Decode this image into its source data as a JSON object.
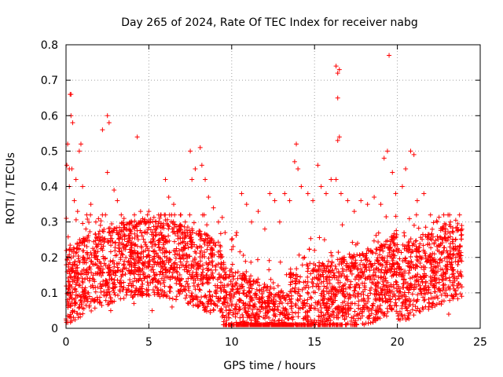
{
  "chart_data": {
    "type": "scatter",
    "title": "Day 265 of 2024, Rate Of TEC Index for receiver nabg",
    "xlabel": "GPS time / hours",
    "ylabel": "ROTI / TECUs",
    "xlim": [
      0,
      25
    ],
    "ylim": [
      0,
      0.8
    ],
    "xticks": [
      0,
      5,
      10,
      15,
      20,
      25
    ],
    "yticks": [
      0,
      0.1,
      0.2,
      0.3,
      0.4,
      0.5,
      0.6,
      0.7,
      0.8
    ],
    "xtick_labels": [
      "0",
      "5",
      "10",
      "15",
      "20",
      "25"
    ],
    "ytick_labels": [
      "0",
      "0.1",
      "0.2",
      "0.3",
      "0.4",
      "0.5",
      "0.6",
      "0.7",
      "0.8"
    ],
    "grid": true,
    "marker": "plus",
    "color": "#ff0000",
    "series": [
      {
        "name": "ROTI",
        "points": [
          [
            0.05,
            0.46
          ],
          [
            0.1,
            0.52
          ],
          [
            0.2,
            0.45
          ],
          [
            0.25,
            0.66
          ],
          [
            0.3,
            0.66
          ],
          [
            0.3,
            0.6
          ],
          [
            0.4,
            0.58
          ],
          [
            0.35,
            0.45
          ],
          [
            0.2,
            0.4
          ],
          [
            0.6,
            0.42
          ],
          [
            0.8,
            0.5
          ],
          [
            0.9,
            0.52
          ],
          [
            0.5,
            0.36
          ],
          [
            0.7,
            0.33
          ],
          [
            1.0,
            0.4
          ],
          [
            1.5,
            0.35
          ],
          [
            1.8,
            0.3
          ],
          [
            2.2,
            0.56
          ],
          [
            2.5,
            0.6
          ],
          [
            2.6,
            0.58
          ],
          [
            2.5,
            0.44
          ],
          [
            2.9,
            0.39
          ],
          [
            3.1,
            0.36
          ],
          [
            3.5,
            0.31
          ],
          [
            3.8,
            0.28
          ],
          [
            4.3,
            0.54
          ],
          [
            4.5,
            0.33
          ],
          [
            4.7,
            0.3
          ],
          [
            5.0,
            0.33
          ],
          [
            5.4,
            0.3
          ],
          [
            6.0,
            0.42
          ],
          [
            6.2,
            0.37
          ],
          [
            6.5,
            0.35
          ],
          [
            6.9,
            0.32
          ],
          [
            7.2,
            0.3
          ],
          [
            7.5,
            0.5
          ],
          [
            7.6,
            0.42
          ],
          [
            7.8,
            0.45
          ],
          [
            8.1,
            0.51
          ],
          [
            8.2,
            0.46
          ],
          [
            8.4,
            0.42
          ],
          [
            8.6,
            0.37
          ],
          [
            8.9,
            0.34
          ],
          [
            9.2,
            0.3
          ],
          [
            9.6,
            0.27
          ],
          [
            10.0,
            0.25
          ],
          [
            10.3,
            0.27
          ],
          [
            10.6,
            0.38
          ],
          [
            10.9,
            0.35
          ],
          [
            11.2,
            0.3
          ],
          [
            11.6,
            0.33
          ],
          [
            12.0,
            0.28
          ],
          [
            12.3,
            0.38
          ],
          [
            12.6,
            0.36
          ],
          [
            12.9,
            0.3
          ],
          [
            13.2,
            0.38
          ],
          [
            13.5,
            0.36
          ],
          [
            13.8,
            0.47
          ],
          [
            13.9,
            0.52
          ],
          [
            14.0,
            0.45
          ],
          [
            14.2,
            0.4
          ],
          [
            14.6,
            0.38
          ],
          [
            14.9,
            0.36
          ],
          [
            15.2,
            0.46
          ],
          [
            15.4,
            0.4
          ],
          [
            15.7,
            0.38
          ],
          [
            16.0,
            0.42
          ],
          [
            16.3,
            0.74
          ],
          [
            16.4,
            0.72
          ],
          [
            16.5,
            0.73
          ],
          [
            16.4,
            0.65
          ],
          [
            16.4,
            0.53
          ],
          [
            16.5,
            0.54
          ],
          [
            16.3,
            0.42
          ],
          [
            16.6,
            0.38
          ],
          [
            17.0,
            0.36
          ],
          [
            17.4,
            0.33
          ],
          [
            17.8,
            0.36
          ],
          [
            18.2,
            0.35
          ],
          [
            18.6,
            0.37
          ],
          [
            19.0,
            0.35
          ],
          [
            19.2,
            0.48
          ],
          [
            19.4,
            0.5
          ],
          [
            19.5,
            0.77
          ],
          [
            19.7,
            0.44
          ],
          [
            19.9,
            0.38
          ],
          [
            20.3,
            0.4
          ],
          [
            20.5,
            0.45
          ],
          [
            20.8,
            0.5
          ],
          [
            21.0,
            0.49
          ],
          [
            21.2,
            0.36
          ],
          [
            21.6,
            0.38
          ],
          [
            22.0,
            0.32
          ],
          [
            22.4,
            0.3
          ],
          [
            22.8,
            0.32
          ],
          [
            23.2,
            0.3
          ],
          [
            23.5,
            0.25
          ],
          [
            23.8,
            0.23
          ],
          [
            1.2,
            0.28
          ],
          [
            1.7,
            0.22
          ],
          [
            2.1,
            0.25
          ],
          [
            3.3,
            0.2
          ],
          [
            3.9,
            0.18
          ],
          [
            4.8,
            0.22
          ],
          [
            5.6,
            0.2
          ],
          [
            6.7,
            0.21
          ],
          [
            7.9,
            0.23
          ],
          [
            9.4,
            0.18
          ],
          [
            10.2,
            0.12
          ],
          [
            10.5,
            0.08
          ],
          [
            10.8,
            0.14
          ],
          [
            11.1,
            0.1
          ],
          [
            11.4,
            0.06
          ],
          [
            11.8,
            0.11
          ],
          [
            12.2,
            0.09
          ],
          [
            12.5,
            0.07
          ],
          [
            12.8,
            0.12
          ],
          [
            13.1,
            0.1
          ],
          [
            13.6,
            0.15
          ],
          [
            14.4,
            0.2
          ],
          [
            15.0,
            0.22
          ],
          [
            15.6,
            0.25
          ],
          [
            16.8,
            0.2
          ],
          [
            17.6,
            0.24
          ],
          [
            18.4,
            0.22
          ],
          [
            19.1,
            0.2
          ],
          [
            20.1,
            0.22
          ],
          [
            21.4,
            0.2
          ],
          [
            22.2,
            0.16
          ],
          [
            22.9,
            0.14
          ],
          [
            23.6,
            0.12
          ],
          [
            0.5,
            0.08
          ],
          [
            1.4,
            0.06
          ],
          [
            2.7,
            0.05
          ],
          [
            4.1,
            0.07
          ],
          [
            5.2,
            0.05
          ],
          [
            6.4,
            0.06
          ],
          [
            7.4,
            0.07
          ],
          [
            8.7,
            0.05
          ],
          [
            9.8,
            0.04
          ],
          [
            10.7,
            0.02
          ],
          [
            11.5,
            0.01
          ],
          [
            12.6,
            0.02
          ],
          [
            13.4,
            0.03
          ],
          [
            14.7,
            0.05
          ],
          [
            15.9,
            0.06
          ],
          [
            17.2,
            0.07
          ],
          [
            18.8,
            0.06
          ],
          [
            20.6,
            0.05
          ],
          [
            21.9,
            0.06
          ],
          [
            23.1,
            0.04
          ]
        ]
      }
    ]
  }
}
